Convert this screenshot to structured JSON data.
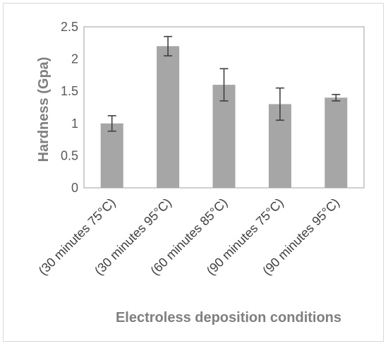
{
  "chart_data": {
    "type": "bar",
    "categories": [
      "(30 minutes 75°C)",
      "(30 minutes 95°C)",
      "(60 minutes 85°C)",
      "(90 minutes 75°C)",
      "(90 minutes 95°C)"
    ],
    "series": [
      {
        "values": [
          1.0,
          2.2,
          1.6,
          1.3,
          1.4
        ],
        "error": [
          0.12,
          0.15,
          0.25,
          0.25,
          0.05
        ],
        "color": "#a6a6a6"
      }
    ],
    "ylabel": "Hardness (Gpa)",
    "xlabel": "Electroless deposition conditions",
    "ylim": [
      0,
      2.5
    ],
    "yticks": [
      "0",
      "0.5",
      "1",
      "1.5",
      "2",
      "2.5"
    ],
    "grid": false,
    "legend": "none",
    "error_bar_color": "#404040",
    "axis_color": "#bfbfbf"
  }
}
